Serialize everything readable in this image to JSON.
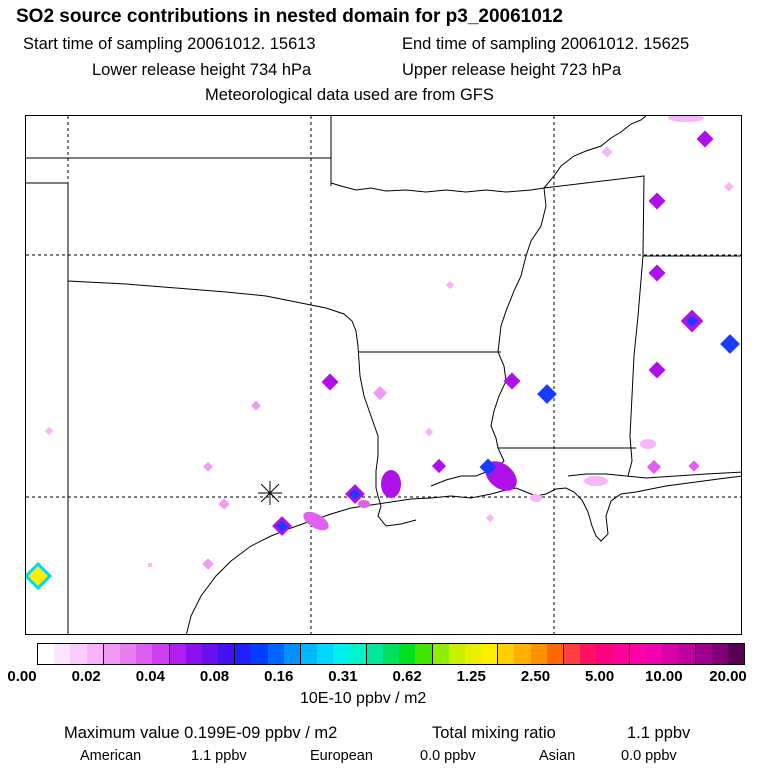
{
  "title": "SO2 source contributions in nested domain for p3_20061012",
  "header": {
    "start_label": "Start time of sampling 20061012. 15613",
    "end_label": "End time of sampling 20061012. 15625",
    "lower_label": "Lower release height  734 hPa",
    "upper_label": "Upper release height  723 hPa",
    "met_label": "Meteorological data used are from GFS"
  },
  "legend": {
    "ticks": [
      "0.00",
      "0.02",
      "0.04",
      "0.08",
      "0.16",
      "0.31",
      "0.62",
      "1.25",
      "2.50",
      "5.00",
      "10.00",
      "20.00"
    ],
    "units": "10E-10 ppbv / m2",
    "colors": [
      "#ffffff",
      "#fde6fd",
      "#fbcdfb",
      "#f8b3f8",
      "#f199f5",
      "#e97ff1",
      "#dc5ff0",
      "#cd3ff0",
      "#b01ef0",
      "#8c10f0",
      "#6a10f0",
      "#4410f0",
      "#2020ff",
      "#0040ff",
      "#0066ff",
      "#0090ff",
      "#00b8ff",
      "#00d8ff",
      "#00f0f0",
      "#00f5c8",
      "#00e89a",
      "#00e060",
      "#00e020",
      "#40e800",
      "#90ec00",
      "#c8f000",
      "#e8f000",
      "#ffee00",
      "#ffd000",
      "#ffb000",
      "#ff9000",
      "#ff6a00",
      "#ff4040",
      "#ff1060",
      "#ff0080",
      "#ff0098",
      "#ff00a8",
      "#f000b0",
      "#d800a8",
      "#c000a0",
      "#a00090",
      "#800078",
      "#5a0050"
    ]
  },
  "summary": {
    "max_label": "Maximum value  0.199E-09 ppbv / m2",
    "total_label": "Total mixing ratio",
    "total_value": "1.1 ppbv",
    "american_label": "American",
    "american_value": "1.1 ppbv",
    "european_label": "European",
    "european_value": "0.0 ppbv",
    "asian_label": "Asian",
    "asian_value": "0.0 ppbv"
  },
  "map": {
    "source_marker": "asterisk-icon",
    "colors": {
      "light": "#f7b7f7",
      "mid": "#e060f0",
      "strong": "#b010e8",
      "core": "#1a3cff",
      "hot": "#ffee00",
      "cyan": "#00d8ff"
    }
  }
}
